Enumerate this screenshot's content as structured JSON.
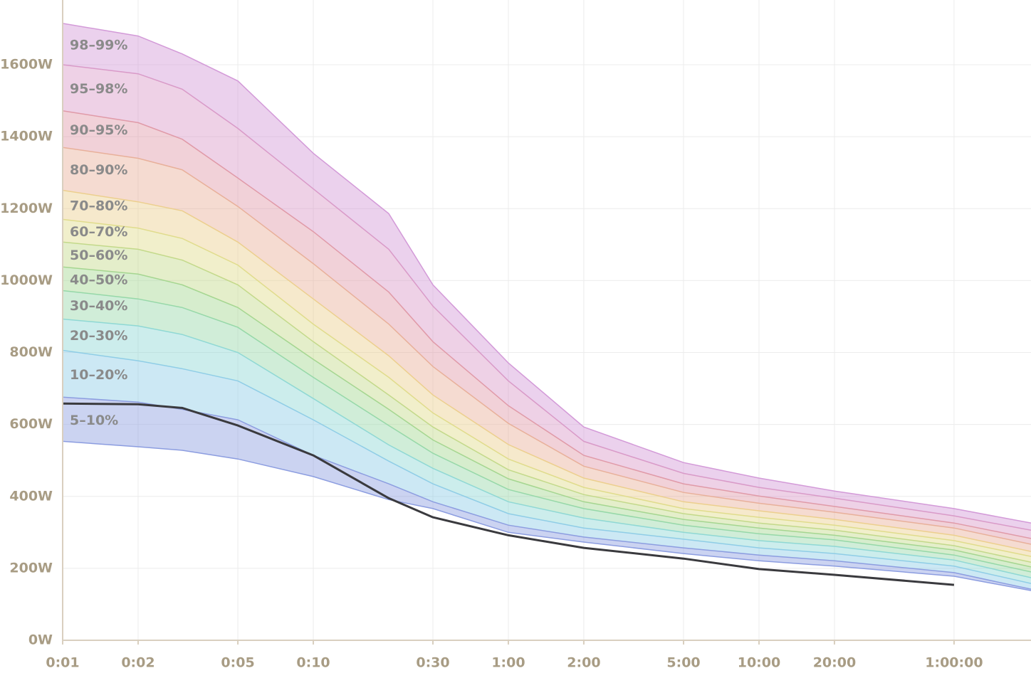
{
  "chart_data": {
    "type": "band-area",
    "xscale": "log",
    "grid": true,
    "x": [
      1,
      2,
      3,
      5,
      10,
      20,
      30,
      60,
      120,
      300,
      600,
      1200,
      3600,
      7300
    ],
    "xlim": [
      1,
      7300
    ],
    "xticks": [
      {
        "value": 1,
        "label": "0:01"
      },
      {
        "value": 2,
        "label": "0:02"
      },
      {
        "value": 5,
        "label": "0:05"
      },
      {
        "value": 10,
        "label": "0:10"
      },
      {
        "value": 30,
        "label": "0:30"
      },
      {
        "value": 60,
        "label": "1:00"
      },
      {
        "value": 120,
        "label": "2:00"
      },
      {
        "value": 300,
        "label": "5:00"
      },
      {
        "value": 600,
        "label": "10:00"
      },
      {
        "value": 1200,
        "label": "20:00"
      },
      {
        "value": 3600,
        "label": "1:00:00"
      }
    ],
    "ylim": [
      0,
      1780
    ],
    "yticks": [
      {
        "value": 0,
        "label": "0W"
      },
      {
        "value": 200,
        "label": "200W"
      },
      {
        "value": 400,
        "label": "400W"
      },
      {
        "value": 600,
        "label": "600W"
      },
      {
        "value": 800,
        "label": "800W"
      },
      {
        "value": 1000,
        "label": "1000W"
      },
      {
        "value": 1200,
        "label": "1200W"
      },
      {
        "value": 1400,
        "label": "1400W"
      },
      {
        "value": 1600,
        "label": "1600W"
      }
    ],
    "series": [
      {
        "name": "5–10%",
        "color": "#8c9de0",
        "low": [
          553,
          538,
          528,
          504,
          455,
          391,
          366,
          300,
          273,
          241,
          221,
          206,
          178,
          138
        ],
        "high": [
          676,
          662,
          642,
          613,
          514,
          435,
          385,
          320,
          287,
          257,
          237,
          221,
          188,
          142
        ]
      },
      {
        "name": "10–20%",
        "color": "#8fcde6",
        "low": [
          676,
          662,
          642,
          613,
          514,
          435,
          385,
          320,
          287,
          257,
          237,
          221,
          188,
          142
        ],
        "high": [
          806,
          777,
          755,
          721,
          613,
          498,
          435,
          352,
          312,
          281,
          257,
          241,
          206,
          158
        ]
      },
      {
        "name": "20–30%",
        "color": "#8fd8d4",
        "low": [
          806,
          777,
          755,
          721,
          613,
          498,
          435,
          352,
          312,
          281,
          257,
          241,
          206,
          158
        ],
        "high": [
          893,
          874,
          850,
          800,
          672,
          543,
          478,
          385,
          340,
          300,
          277,
          261,
          223,
          174
        ]
      },
      {
        "name": "30–40%",
        "color": "#96d8a8",
        "low": [
          893,
          874,
          850,
          800,
          672,
          543,
          478,
          385,
          340,
          300,
          277,
          261,
          223,
          174
        ],
        "high": [
          972,
          949,
          925,
          870,
          731,
          597,
          520,
          419,
          366,
          320,
          296,
          279,
          237,
          190
        ]
      },
      {
        "name": "40–50%",
        "color": "#a5d690",
        "low": [
          972,
          949,
          925,
          870,
          731,
          597,
          520,
          419,
          366,
          320,
          296,
          279,
          237,
          190
        ],
        "high": [
          1038,
          1018,
          988,
          925,
          781,
          642,
          557,
          449,
          385,
          336,
          312,
          292,
          251,
          204
        ]
      },
      {
        "name": "50–60%",
        "color": "#c3d98a",
        "low": [
          1038,
          1018,
          988,
          925,
          781,
          642,
          557,
          449,
          385,
          336,
          312,
          292,
          251,
          204
        ],
        "high": [
          1107,
          1087,
          1057,
          988,
          830,
          682,
          593,
          474,
          405,
          352,
          326,
          306,
          263,
          217
        ]
      },
      {
        "name": "60–70%",
        "color": "#e0dc8c",
        "low": [
          1107,
          1087,
          1057,
          988,
          830,
          682,
          593,
          474,
          405,
          352,
          326,
          306,
          263,
          217
        ],
        "high": [
          1170,
          1146,
          1117,
          1043,
          879,
          731,
          632,
          504,
          425,
          366,
          342,
          320,
          277,
          233
        ]
      },
      {
        "name": "70–80%",
        "color": "#eccf8e",
        "low": [
          1170,
          1146,
          1117,
          1043,
          879,
          731,
          632,
          504,
          425,
          366,
          342,
          320,
          277,
          233
        ],
        "high": [
          1251,
          1219,
          1194,
          1107,
          949,
          791,
          682,
          544,
          451,
          385,
          360,
          336,
          292,
          247
        ]
      },
      {
        "name": "80–90%",
        "color": "#e8b09a",
        "low": [
          1251,
          1219,
          1194,
          1107,
          949,
          791,
          682,
          544,
          451,
          385,
          360,
          336,
          292,
          247
        ],
        "high": [
          1370,
          1340,
          1308,
          1206,
          1047,
          879,
          761,
          603,
          484,
          411,
          381,
          356,
          312,
          267
        ]
      },
      {
        "name": "90–95%",
        "color": "#e09aa8",
        "low": [
          1370,
          1340,
          1308,
          1206,
          1047,
          879,
          761,
          603,
          484,
          411,
          381,
          356,
          312,
          267
        ],
        "high": [
          1472,
          1439,
          1393,
          1285,
          1136,
          968,
          830,
          652,
          514,
          435,
          401,
          372,
          326,
          283
        ]
      },
      {
        "name": "95–98%",
        "color": "#d99ac8",
        "low": [
          1472,
          1439,
          1393,
          1285,
          1136,
          968,
          830,
          652,
          514,
          435,
          401,
          372,
          326,
          283
        ],
        "high": [
          1600,
          1575,
          1532,
          1423,
          1255,
          1087,
          929,
          721,
          553,
          464,
          425,
          395,
          346,
          306
        ]
      },
      {
        "name": "98–99%",
        "color": "#d39ad8",
        "low": [
          1600,
          1575,
          1532,
          1423,
          1255,
          1087,
          929,
          721,
          553,
          464,
          425,
          395,
          346,
          306
        ],
        "high": [
          1715,
          1680,
          1630,
          1555,
          1354,
          1186,
          988,
          771,
          593,
          494,
          451,
          415,
          366,
          326
        ]
      }
    ],
    "line": {
      "color": "#3a3a3e",
      "values": [
        658,
        656,
        646,
        597,
        514,
        395,
        342,
        292,
        257,
        227,
        198,
        182,
        154,
        null
      ]
    }
  }
}
